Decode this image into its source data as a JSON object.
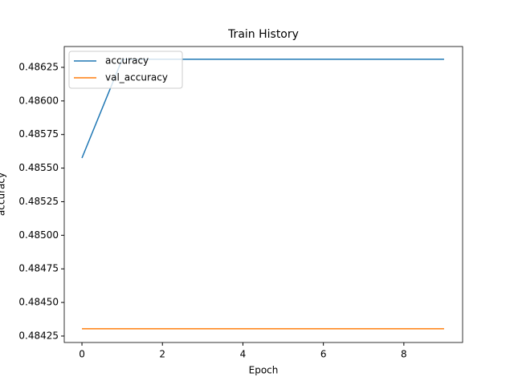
{
  "chart_data": {
    "type": "line",
    "title": "Train History",
    "x_label": "Epoch",
    "y_label": "accuracy",
    "x": [
      0,
      1,
      2,
      3,
      4,
      5,
      6,
      7,
      8,
      9
    ],
    "series": [
      {
        "name": "accuracy",
        "color": "#1f77b4",
        "values": [
          0.485575,
          0.48631,
          0.48631,
          0.48631,
          0.48631,
          0.48631,
          0.48631,
          0.48631,
          0.48631,
          0.48631
        ]
      },
      {
        "name": "val_accuracy",
        "color": "#ff7f0e",
        "values": [
          0.484304,
          0.484304,
          0.484304,
          0.484304,
          0.484304,
          0.484304,
          0.484304,
          0.484304,
          0.484304,
          0.484304
        ]
      }
    ],
    "xlim": [
      -0.44,
      9.46
    ],
    "xticks": [
      0,
      2,
      4,
      6,
      8
    ],
    "ylim": [
      0.484202,
      0.486405
    ],
    "yticks": [
      0.48425,
      {
        "value": 0.4845,
        "label": "0.48450"
      },
      0.48475,
      {
        "value": 0.485,
        "label": "0.48500"
      },
      0.48525,
      {
        "value": 0.4855,
        "label": "0.48550"
      },
      0.48575,
      {
        "value": 0.486,
        "label": "0.48600"
      },
      0.48625
    ],
    "legend": "upper left",
    "grid": false
  }
}
